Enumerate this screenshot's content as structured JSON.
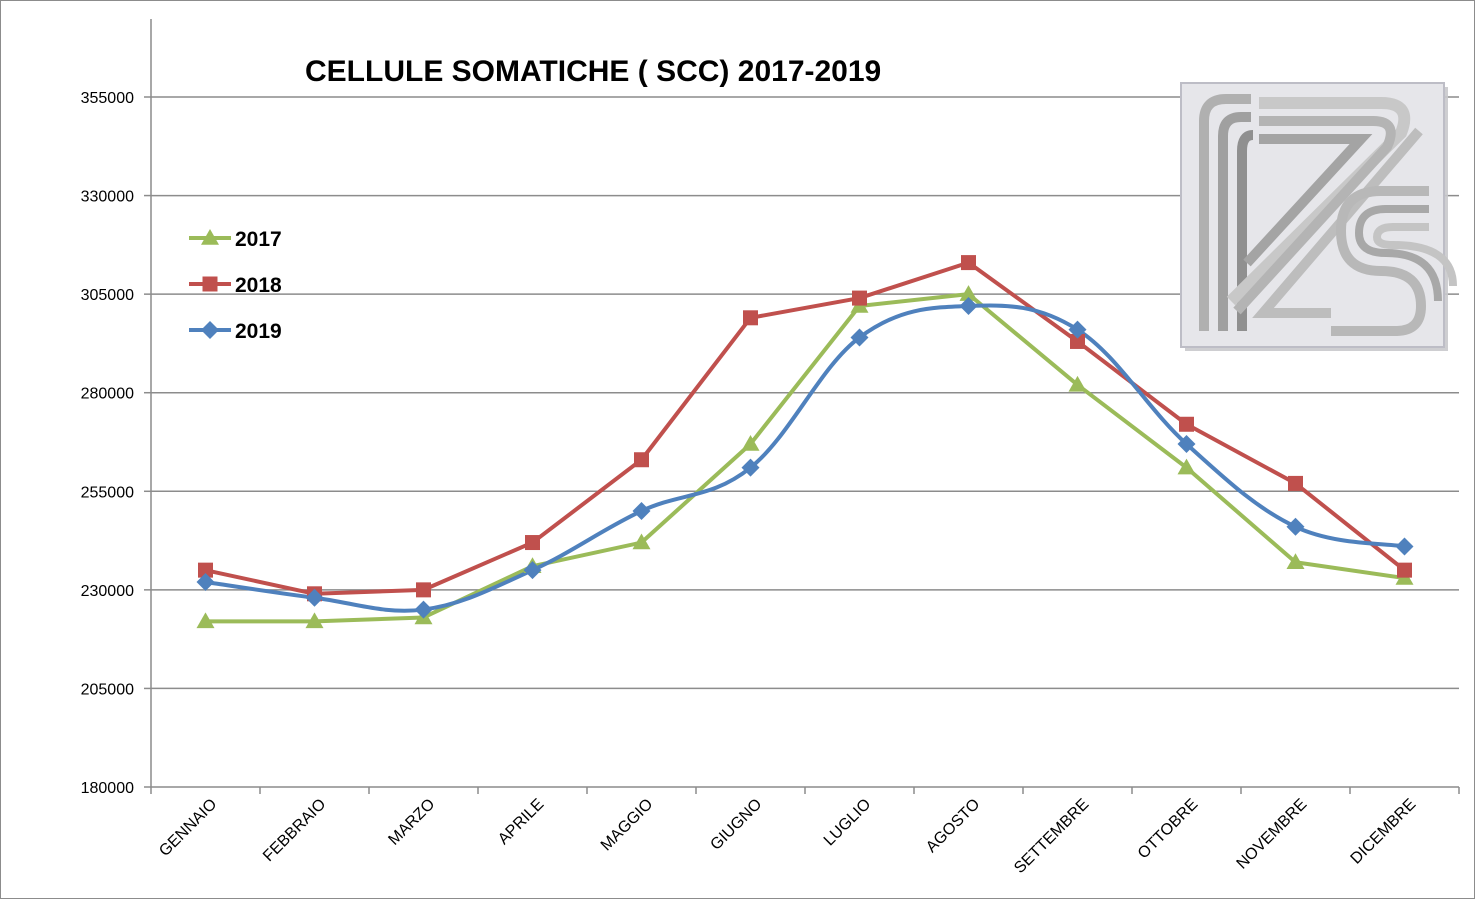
{
  "chart_data": {
    "type": "line",
    "title": "CELLULE SOMATICHE ( SCC)  2017-2019",
    "xlabel": "",
    "ylabel": "",
    "categories": [
      "GENNAIO",
      "FEBBRAIO",
      "MARZO",
      "APRILE",
      "MAGGIO",
      "GIUGNO",
      "LUGLIO",
      "AGOSTO",
      "SETTEMBRE",
      "OTTOBRE",
      "NOVEMBRE",
      "DICEMBRE"
    ],
    "ylim": [
      180000,
      355000
    ],
    "yticks": [
      "180000",
      "205000",
      "230000",
      "255000",
      "280000",
      "305000",
      "330000",
      "355000"
    ],
    "grid": true,
    "legend_position": "top-left",
    "series": [
      {
        "name": "2017",
        "color": "#9bbb59",
        "marker": "triangle",
        "smooth": false,
        "values": [
          222000,
          222000,
          223000,
          236000,
          242000,
          267000,
          302000,
          305000,
          282000,
          261000,
          237000,
          233000
        ]
      },
      {
        "name": "2018",
        "color": "#c0504d",
        "marker": "square",
        "smooth": false,
        "values": [
          235000,
          229000,
          230000,
          242000,
          263000,
          299000,
          304000,
          313000,
          293000,
          272000,
          257000,
          235000
        ]
      },
      {
        "name": "2019",
        "color": "#4f81bd",
        "marker": "diamond",
        "smooth": true,
        "values": [
          232000,
          228000,
          225000,
          235000,
          250000,
          261000,
          294000,
          302000,
          296000,
          267000,
          246000,
          241000
        ]
      }
    ]
  },
  "logo": {
    "name": "izs-logo-icon"
  }
}
